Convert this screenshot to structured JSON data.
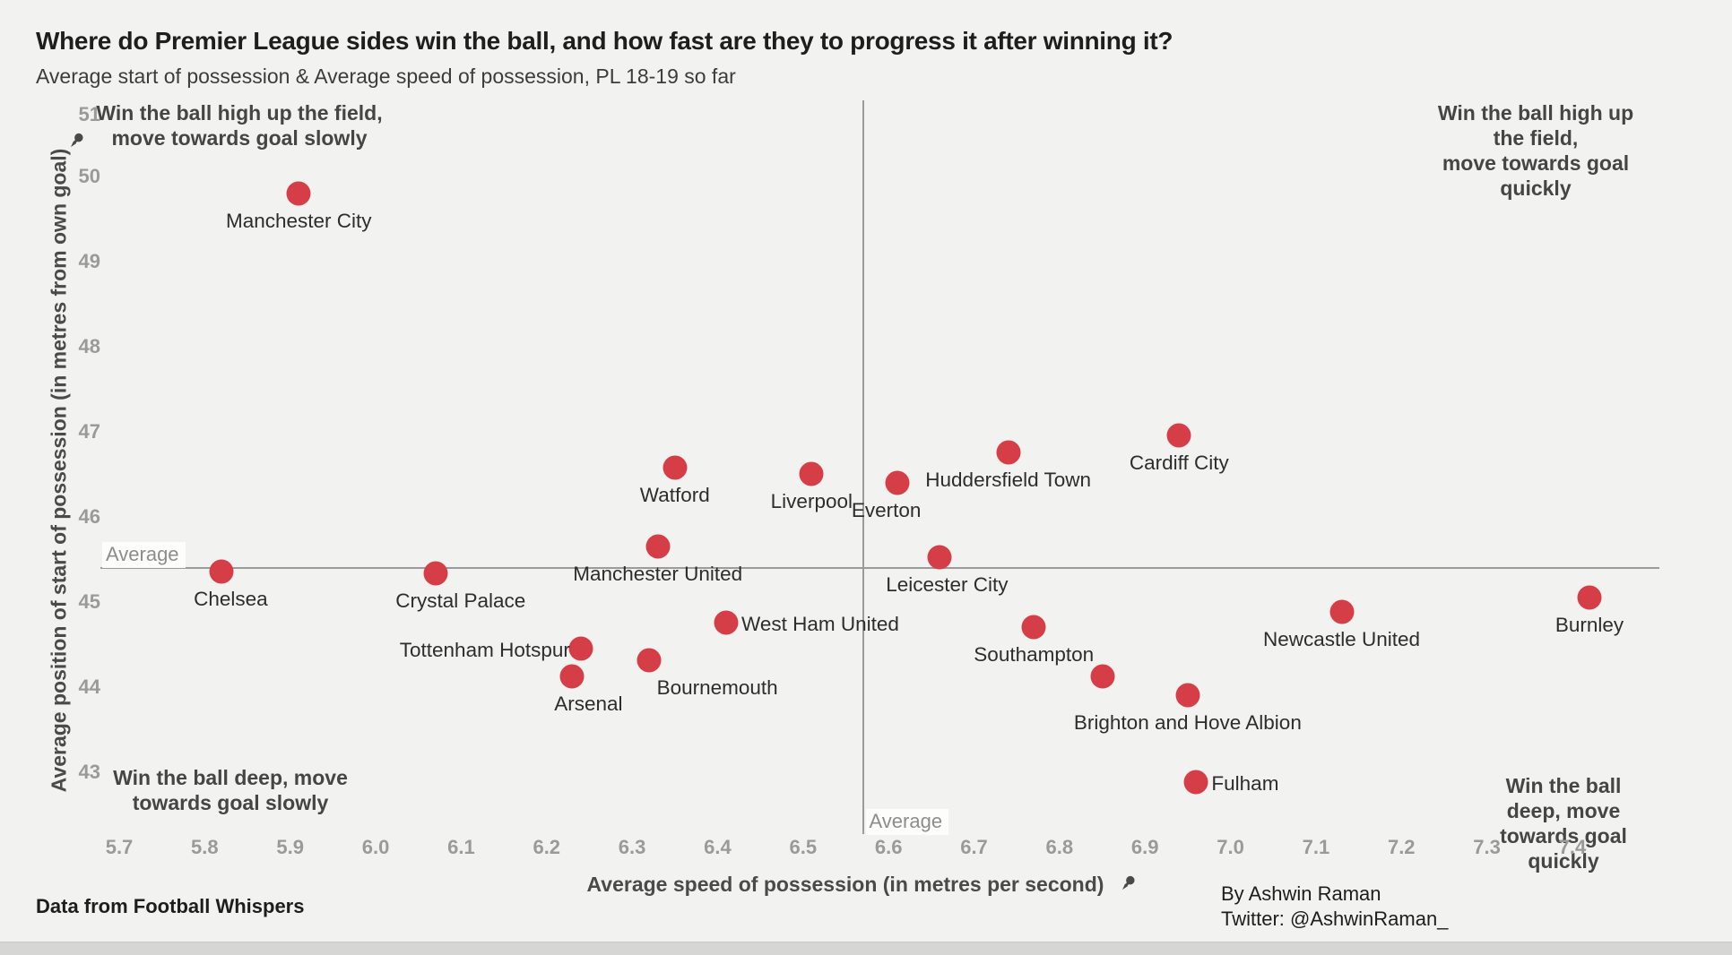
{
  "header": {
    "title": "Where do Premier League sides win the ball, and how fast are they to progress it after winning it?",
    "subtitle": "Average start of possession & Average speed of possession, PL 18-19 so far"
  },
  "quadrant_notes": {
    "top_left": "Win the ball high up the field,\nmove towards goal slowly",
    "top_right": "Win the ball high up the field,\nmove towards goal quickly",
    "bottom_left": "Win the ball deep, move\ntowards goal slowly",
    "bottom_right": "Win the ball deep, move\ntowards goal quickly"
  },
  "average_labels": {
    "horizontal": "Average",
    "vertical": "Average"
  },
  "credits": {
    "source": "Data from Football Whispers",
    "author": "By Ashwin Raman",
    "twitter": "Twitter: @AshwinRaman_"
  },
  "colors": {
    "dot": "#d63e47",
    "background": "#f2f2f1",
    "average_line": "#9b9b9b",
    "tick_text": "#9a9a9a"
  },
  "chart_data": {
    "type": "scatter",
    "title": "Where do Premier League sides win the ball, and how fast are they to progress it after winning it?",
    "subtitle": "Average start of possession & Average speed of possession, PL 18-19 so far",
    "xlabel": "Average speed of possession (in metres per second)",
    "ylabel": "Average position of start of possession (in metres from own goal)",
    "xlim": [
      5.62,
      7.49
    ],
    "ylim": [
      42.3,
      51.3
    ],
    "x_ticks": [
      5.7,
      5.8,
      5.9,
      6.0,
      6.1,
      6.2,
      6.3,
      6.4,
      6.5,
      6.6,
      6.7,
      6.8,
      6.9,
      7.0,
      7.1,
      7.2,
      7.3,
      7.4
    ],
    "y_ticks": [
      43,
      44,
      45,
      46,
      47,
      48,
      49,
      50,
      51
    ],
    "grid": false,
    "legend": false,
    "averages": {
      "x": 6.57,
      "y": 45.4
    },
    "points": [
      {
        "name": "Manchester City",
        "x": 5.91,
        "y": 49.8,
        "label_pos": "below",
        "label_dx": 0
      },
      {
        "name": "Chelsea",
        "x": 5.82,
        "y": 45.35,
        "label_pos": "below",
        "label_dx": 10
      },
      {
        "name": "Crystal Palace",
        "x": 6.07,
        "y": 45.33,
        "label_pos": "below",
        "label_dx": 28
      },
      {
        "name": "Manchester United",
        "x": 6.33,
        "y": 45.65,
        "label_pos": "below",
        "label_dx": 0
      },
      {
        "name": "Watford",
        "x": 6.35,
        "y": 46.58,
        "label_pos": "below",
        "label_dx": 0
      },
      {
        "name": "Tottenham Hotspur",
        "x": 6.24,
        "y": 44.45,
        "label_pos": "left",
        "label_dx": 0
      },
      {
        "name": "Arsenal",
        "x": 6.23,
        "y": 44.12,
        "label_pos": "below",
        "label_dx": 18
      },
      {
        "name": "Bournemouth",
        "x": 6.32,
        "y": 44.31,
        "label_pos": "below",
        "label_dx": 76
      },
      {
        "name": "West Ham United",
        "x": 6.41,
        "y": 44.75,
        "label_pos": "right",
        "label_dx": 0
      },
      {
        "name": "Liverpool",
        "x": 6.51,
        "y": 46.5,
        "label_pos": "below",
        "label_dx": 0
      },
      {
        "name": "Everton",
        "x": 6.61,
        "y": 46.4,
        "label_pos": "below",
        "label_dx": -12
      },
      {
        "name": "Leicester City",
        "x": 6.66,
        "y": 45.52,
        "label_pos": "below",
        "label_dx": 8
      },
      {
        "name": "Huddersfield Town",
        "x": 6.74,
        "y": 46.75,
        "label_pos": "below",
        "label_dx": 0
      },
      {
        "name": "Cardiff City",
        "x": 6.94,
        "y": 46.95,
        "label_pos": "below",
        "label_dx": 0
      },
      {
        "name": "Southampton",
        "x": 6.77,
        "y": 44.7,
        "label_pos": "below",
        "label_dx": 0
      },
      {
        "name": "",
        "x": 6.85,
        "y": 44.12,
        "label_pos": "none",
        "label_dx": 0
      },
      {
        "name": "Brighton and Hove Albion",
        "x": 6.95,
        "y": 43.9,
        "label_pos": "below",
        "label_dx": 0
      },
      {
        "name": "Fulham",
        "x": 6.96,
        "y": 42.88,
        "label_pos": "right",
        "label_dx": 0
      },
      {
        "name": "Newcastle United",
        "x": 7.13,
        "y": 44.88,
        "label_pos": "below",
        "label_dx": 0
      },
      {
        "name": "Burnley",
        "x": 7.42,
        "y": 45.05,
        "label_pos": "below",
        "label_dx": 0
      }
    ]
  }
}
